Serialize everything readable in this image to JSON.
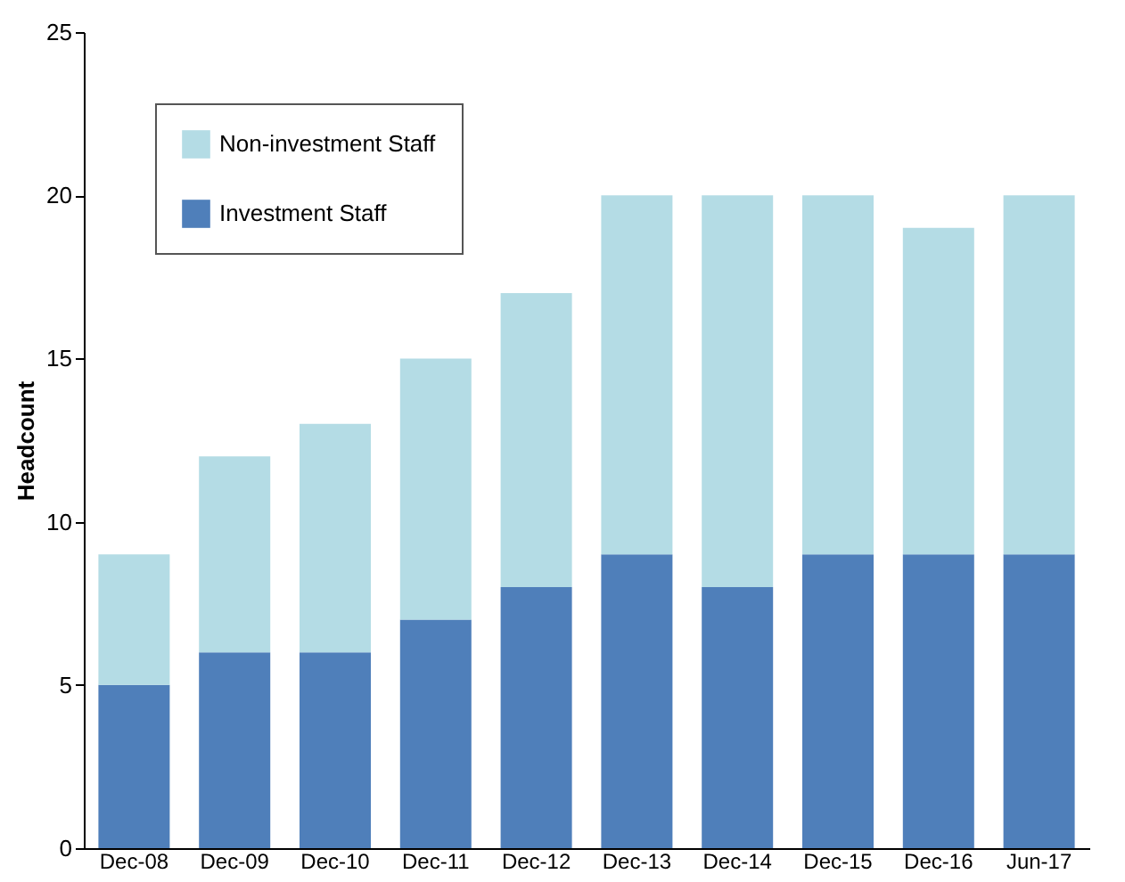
{
  "chart_data": {
    "type": "bar",
    "stacked": true,
    "ylabel": "Headcount",
    "categories": [
      "Dec-08",
      "Dec-09",
      "Dec-10",
      "Dec-11",
      "Dec-12",
      "Dec-13",
      "Dec-14",
      "Dec-15",
      "Dec-16",
      "Jun-17"
    ],
    "series": [
      {
        "name": "Investment Staff",
        "color": "#4f7fba",
        "values": [
          5,
          6,
          6,
          7,
          8,
          9,
          8,
          9,
          9,
          9
        ]
      },
      {
        "name": "Non-investment Staff",
        "color": "#b4dce5",
        "values": [
          4,
          6,
          7,
          8,
          9,
          11,
          12,
          11,
          10,
          11
        ]
      }
    ],
    "ylim": [
      0,
      25
    ],
    "yticks": [
      0,
      5,
      10,
      15,
      20,
      25
    ],
    "grid": false,
    "legend": "top left"
  }
}
